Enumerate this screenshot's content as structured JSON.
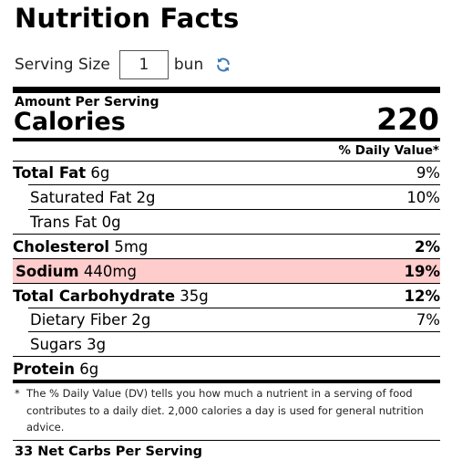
{
  "title": "Nutrition Facts",
  "serving": {
    "label": "Serving Size",
    "value": "1",
    "unit": "bun",
    "refresh_icon": "refresh-icon"
  },
  "amount_per_serving": "Amount Per Serving",
  "calories": {
    "label": "Calories",
    "value": "220"
  },
  "daily_value_header": "% Daily Value*",
  "nutrients": [
    {
      "name": "Total Fat",
      "amount": "6g",
      "percent": "9%"
    },
    {
      "name": "Saturated Fat",
      "amount": "2g",
      "percent": "10%"
    },
    {
      "name": "Trans Fat",
      "amount": "0g",
      "percent": ""
    },
    {
      "name": "Cholesterol",
      "amount": "5mg",
      "percent": "2%"
    },
    {
      "name": "Sodium",
      "amount": "440mg",
      "percent": "19%"
    },
    {
      "name": "Total Carbohydrate",
      "amount": "35g",
      "percent": "12%"
    },
    {
      "name": "Dietary Fiber",
      "amount": "2g",
      "percent": "7%"
    },
    {
      "name": "Sugars",
      "amount": "3g",
      "percent": ""
    },
    {
      "name": "Protein",
      "amount": "6g",
      "percent": ""
    }
  ],
  "highlight_color": "#ffcccc",
  "accent_color": "#3a78b5",
  "footnote": {
    "marker": "*",
    "text": "The % Daily Value (DV) tells you how much a nutrient in a serving of food contributes to a daily diet. 2,000 calories a day is used for general nutrition advice."
  },
  "net_carbs": "33 Net Carbs Per Serving"
}
